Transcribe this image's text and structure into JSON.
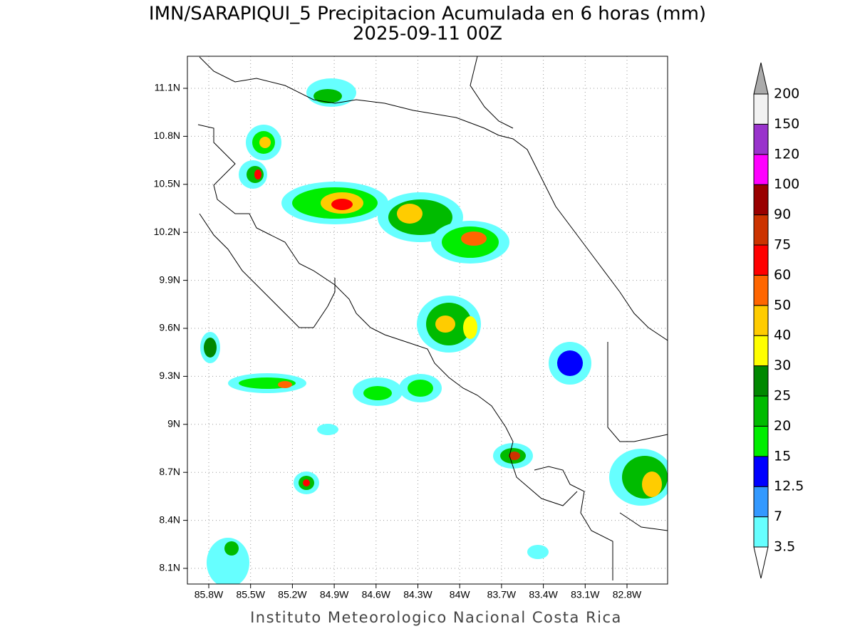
{
  "title": "IMN/SARAPIQUI_5 Precipitacion Acumulada en 6 horas (mm)",
  "subtitle": "2025-09-11 00Z",
  "lon_ticks": [
    "85.8W",
    "85.5W",
    "85.2W",
    "84.9W",
    "84.6W",
    "84.3W",
    "84W",
    "83.7W",
    "83.4W",
    "83.1W",
    "82.8W"
  ],
  "lat_ticks": [
    "11.1N",
    "10.8N",
    "10.5N",
    "10.2N",
    "9.9N",
    "9.6N",
    "9.3N",
    "9N",
    "8.7N",
    "8.4N",
    "8.1N"
  ],
  "colorbar": {
    "levels": [
      3.5,
      7,
      12.5,
      15,
      20,
      25,
      30,
      40,
      50,
      60,
      75,
      90,
      100,
      120,
      150,
      200
    ],
    "colors": [
      "#66ffff",
      "#3399ff",
      "#0000ff",
      "#00ee00",
      "#00bb00",
      "#008800",
      "#ffff00",
      "#ffcc00",
      "#ff6600",
      "#ff0000",
      "#cc3300",
      "#990000",
      "#ff00ff",
      "#9933cc",
      "#f2f2f2"
    ],
    "under_color": "#ffffff",
    "over_color": "#aaaaaa"
  },
  "footer": "Instituto Meteorologico Nacional Costa Rica"
}
